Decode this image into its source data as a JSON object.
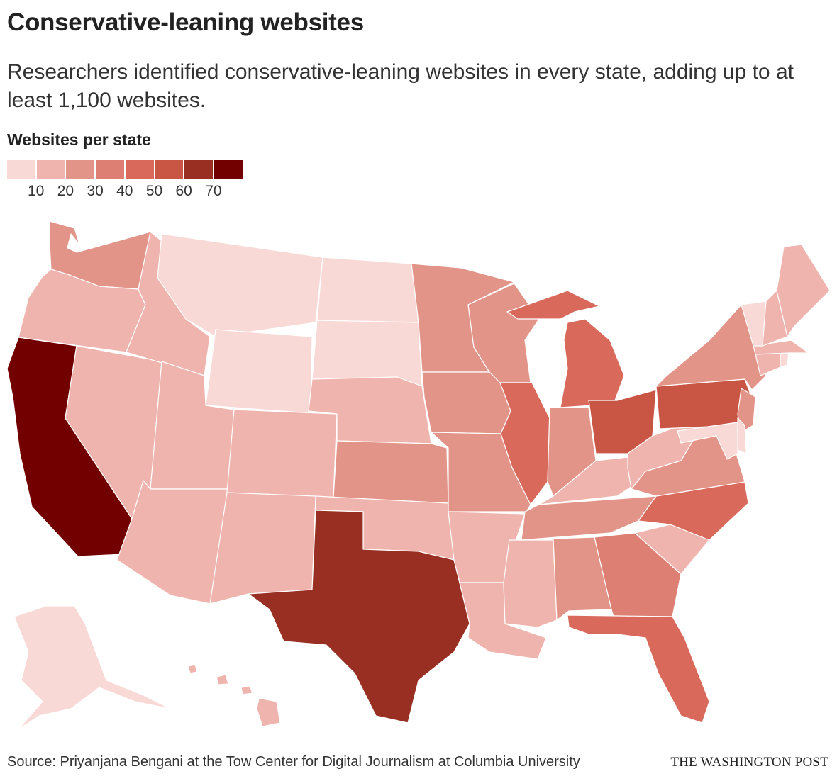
{
  "header": {
    "title": "Conservative-leaning websites",
    "subtitle": "Researchers identified conservative-leaning websites in every state, adding up to at least 1,100 websites."
  },
  "legend": {
    "title": "Websites per state",
    "colors": [
      "#f8d9d6",
      "#efb4ad",
      "#e39488",
      "#dd7f72",
      "#d8695b",
      "#c95544",
      "#992e23",
      "#720000"
    ],
    "tick_labels": [
      "10",
      "20",
      "30",
      "40",
      "50",
      "60",
      "70"
    ]
  },
  "map": {
    "states": {
      "WA": 2,
      "OR": 1,
      "CA": 7,
      "NV": 1,
      "ID": 1,
      "MT": 0,
      "WY": 0,
      "UT": 1,
      "AZ": 1,
      "CO": 1,
      "NM": 1,
      "ND": 0,
      "SD": 0,
      "NE": 1,
      "KS": 2,
      "OK": 1,
      "TX": 6,
      "MN": 2,
      "IA": 2,
      "MO": 2,
      "AR": 1,
      "LA": 1,
      "WI": 2,
      "IL": 4,
      "MI": 4,
      "IN": 2,
      "OH": 5,
      "KY": 1,
      "TN": 2,
      "MS": 1,
      "AL": 2,
      "GA": 3,
      "FL": 4,
      "SC": 1,
      "NC": 4,
      "VA": 2,
      "WV": 1,
      "PA": 5,
      "NY": 2,
      "NJ": 2,
      "DE": 0,
      "MD": 0,
      "CT": 1,
      "RI": 0,
      "MA": 1,
      "VT": 0,
      "NH": 1,
      "ME": 1,
      "AK": 0,
      "HI": 1
    }
  },
  "footer": {
    "source": "Source: Priyanjana Bengani at the Tow Center for Digital Journalism at Columbia University",
    "credit": "THE WASHINGTON POST"
  }
}
